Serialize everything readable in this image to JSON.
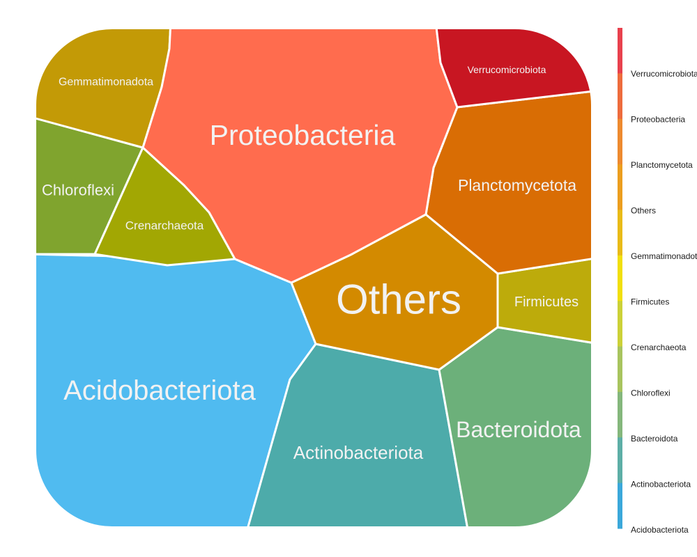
{
  "chart_data": {
    "type": "voronoi-treemap",
    "title": "",
    "cells": [
      {
        "name": "Acidobacteriota",
        "color": "#50BBF0"
      },
      {
        "name": "Actinobacteriota",
        "color": "#4DABAA"
      },
      {
        "name": "Bacteroidota",
        "color": "#6CB07A"
      },
      {
        "name": "Chloroflexi",
        "color": "#80A42E"
      },
      {
        "name": "Crenarchaeota",
        "color": "#A2A703"
      },
      {
        "name": "Firmicutes",
        "color": "#BDAB0B"
      },
      {
        "name": "Gemmatimonadota",
        "color": "#C39A06"
      },
      {
        "name": "Others",
        "color": "#D38A00"
      },
      {
        "name": "Planctomycetota",
        "color": "#D96D04"
      },
      {
        "name": "Proteobacteria",
        "color": "#FF6C4E"
      },
      {
        "name": "Verrucomicrobiota",
        "color": "#C81622"
      }
    ],
    "legend": {
      "placement": "right",
      "labels": [
        "Verrucomicrobiota",
        "Proteobacteria",
        "Planctomycetota",
        "Others",
        "Gemmatimonadota",
        "Firmicutes",
        "Crenarchaeota",
        "Chloroflexi",
        "Bacteroidota",
        "Actinobacteriota",
        "Acidobacteriota"
      ],
      "colorbar": [
        "#E8414D",
        "#EE6C3D",
        "#EE8A2F",
        "#EC9E1F",
        "#E9BB18",
        "#F1DF0C",
        "#CCD138",
        "#A8C45F",
        "#84B77C",
        "#5DAEA6",
        "#3BA8DA"
      ]
    }
  }
}
